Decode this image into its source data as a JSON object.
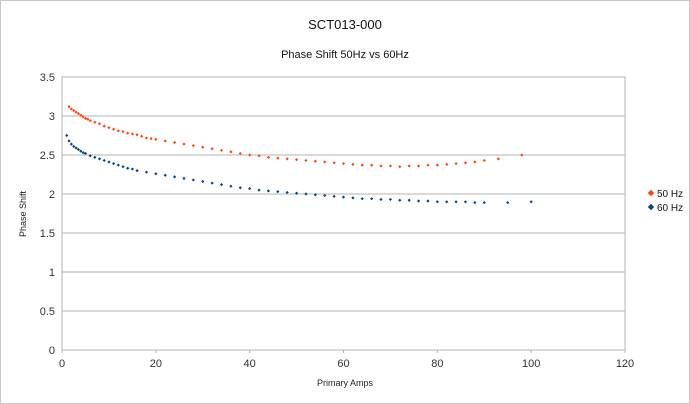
{
  "chart_data": {
    "type": "scatter",
    "title": "SCT013-000",
    "subtitle": "Phase Shift 50Hz vs 60Hz",
    "xlabel": "Primary Amps",
    "ylabel": "Phase Shift",
    "xlim": [
      0,
      120
    ],
    "ylim": [
      0,
      3.5
    ],
    "x_ticks": [
      0,
      20,
      40,
      60,
      80,
      100,
      120
    ],
    "y_ticks": [
      0,
      0.5,
      1,
      1.5,
      2,
      2.5,
      3,
      3.5
    ],
    "x_tick_labels": [
      "0",
      "20",
      "40",
      "60",
      "80",
      "100",
      "120"
    ],
    "y_tick_labels": [
      "0",
      "0.5",
      "1",
      "1.5",
      "2",
      "2.5",
      "3",
      "3.5"
    ],
    "grid": "horizontal",
    "legend_position": "right",
    "series": [
      {
        "name": "50 Hz",
        "color": "#ff420e",
        "marker": "diamond",
        "points": [
          [
            1.5,
            3.12
          ],
          [
            2,
            3.09
          ],
          [
            2.5,
            3.07
          ],
          [
            3,
            3.05
          ],
          [
            3.5,
            3.03
          ],
          [
            4,
            3.01
          ],
          [
            4.5,
            2.99
          ],
          [
            5,
            2.97
          ],
          [
            5.5,
            2.96
          ],
          [
            6,
            2.94
          ],
          [
            7,
            2.92
          ],
          [
            8,
            2.9
          ],
          [
            9,
            2.87
          ],
          [
            10,
            2.85
          ],
          [
            11,
            2.83
          ],
          [
            12,
            2.81
          ],
          [
            13,
            2.8
          ],
          [
            14,
            2.78
          ],
          [
            15,
            2.77
          ],
          [
            16,
            2.76
          ],
          [
            17,
            2.74
          ],
          [
            18,
            2.72
          ],
          [
            19,
            2.71
          ],
          [
            20,
            2.7
          ],
          [
            22,
            2.68
          ],
          [
            24,
            2.66
          ],
          [
            26,
            2.64
          ],
          [
            28,
            2.62
          ],
          [
            30,
            2.6
          ],
          [
            32,
            2.58
          ],
          [
            34,
            2.56
          ],
          [
            36,
            2.54
          ],
          [
            38,
            2.52
          ],
          [
            40,
            2.5
          ],
          [
            42,
            2.49
          ],
          [
            44,
            2.47
          ],
          [
            46,
            2.46
          ],
          [
            48,
            2.45
          ],
          [
            50,
            2.44
          ],
          [
            52,
            2.43
          ],
          [
            54,
            2.42
          ],
          [
            56,
            2.41
          ],
          [
            58,
            2.4
          ],
          [
            60,
            2.39
          ],
          [
            62,
            2.38
          ],
          [
            64,
            2.37
          ],
          [
            66,
            2.37
          ],
          [
            68,
            2.36
          ],
          [
            70,
            2.36
          ],
          [
            72,
            2.35
          ],
          [
            74,
            2.36
          ],
          [
            76,
            2.36
          ],
          [
            78,
            2.37
          ],
          [
            80,
            2.37
          ],
          [
            82,
            2.38
          ],
          [
            84,
            2.39
          ],
          [
            86,
            2.4
          ],
          [
            88,
            2.41
          ],
          [
            90,
            2.43
          ],
          [
            93,
            2.45
          ],
          [
            98,
            2.5
          ]
        ]
      },
      {
        "name": "60 Hz",
        "color": "#004586",
        "marker": "diamond",
        "points": [
          [
            1,
            2.75
          ],
          [
            1.5,
            2.68
          ],
          [
            2,
            2.64
          ],
          [
            2.5,
            2.61
          ],
          [
            3,
            2.59
          ],
          [
            3.5,
            2.57
          ],
          [
            4,
            2.55
          ],
          [
            4.5,
            2.53
          ],
          [
            5,
            2.52
          ],
          [
            6,
            2.49
          ],
          [
            7,
            2.47
          ],
          [
            8,
            2.45
          ],
          [
            9,
            2.43
          ],
          [
            10,
            2.41
          ],
          [
            11,
            2.39
          ],
          [
            12,
            2.37
          ],
          [
            13,
            2.35
          ],
          [
            14,
            2.33
          ],
          [
            15,
            2.32
          ],
          [
            16,
            2.3
          ],
          [
            18,
            2.28
          ],
          [
            20,
            2.26
          ],
          [
            22,
            2.24
          ],
          [
            24,
            2.22
          ],
          [
            26,
            2.2
          ],
          [
            28,
            2.18
          ],
          [
            30,
            2.16
          ],
          [
            32,
            2.14
          ],
          [
            34,
            2.12
          ],
          [
            36,
            2.1
          ],
          [
            38,
            2.08
          ],
          [
            40,
            2.07
          ],
          [
            42,
            2.05
          ],
          [
            44,
            2.04
          ],
          [
            46,
            2.03
          ],
          [
            48,
            2.02
          ],
          [
            50,
            2.01
          ],
          [
            52,
            2.0
          ],
          [
            54,
            1.99
          ],
          [
            56,
            1.98
          ],
          [
            58,
            1.97
          ],
          [
            60,
            1.96
          ],
          [
            62,
            1.95
          ],
          [
            64,
            1.94
          ],
          [
            66,
            1.94
          ],
          [
            68,
            1.93
          ],
          [
            70,
            1.93
          ],
          [
            72,
            1.92
          ],
          [
            74,
            1.92
          ],
          [
            76,
            1.91
          ],
          [
            78,
            1.91
          ],
          [
            80,
            1.9
          ],
          [
            82,
            1.9
          ],
          [
            84,
            1.9
          ],
          [
            86,
            1.9
          ],
          [
            88,
            1.89
          ],
          [
            90,
            1.89
          ],
          [
            95,
            1.89
          ],
          [
            100,
            1.9
          ]
        ]
      }
    ]
  }
}
